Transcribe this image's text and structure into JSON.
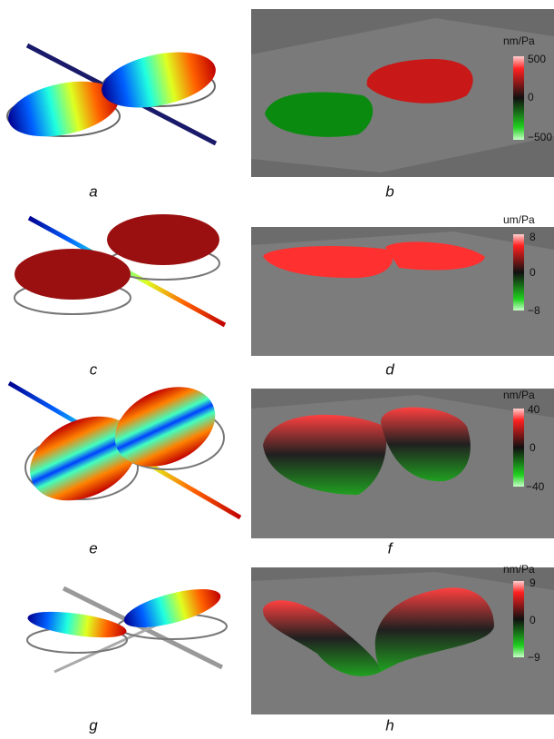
{
  "rows": [
    {
      "left_label": "a",
      "right_label": "b",
      "colorbar": {
        "unit": "nm/Pa",
        "ticks": [
          "500",
          "0",
          "−500"
        ]
      }
    },
    {
      "left_label": "c",
      "right_label": "d",
      "colorbar": {
        "unit": "um/Pa",
        "ticks": [
          "8",
          "0",
          "−8"
        ]
      }
    },
    {
      "left_label": "e",
      "right_label": "f",
      "colorbar": {
        "unit": "nm/Pa",
        "ticks": [
          "40",
          "0",
          "−40"
        ]
      }
    },
    {
      "left_label": "g",
      "right_label": "h",
      "colorbar": {
        "unit": "nm/Pa",
        "ticks": [
          "9",
          "0",
          "−9"
        ]
      }
    }
  ]
}
